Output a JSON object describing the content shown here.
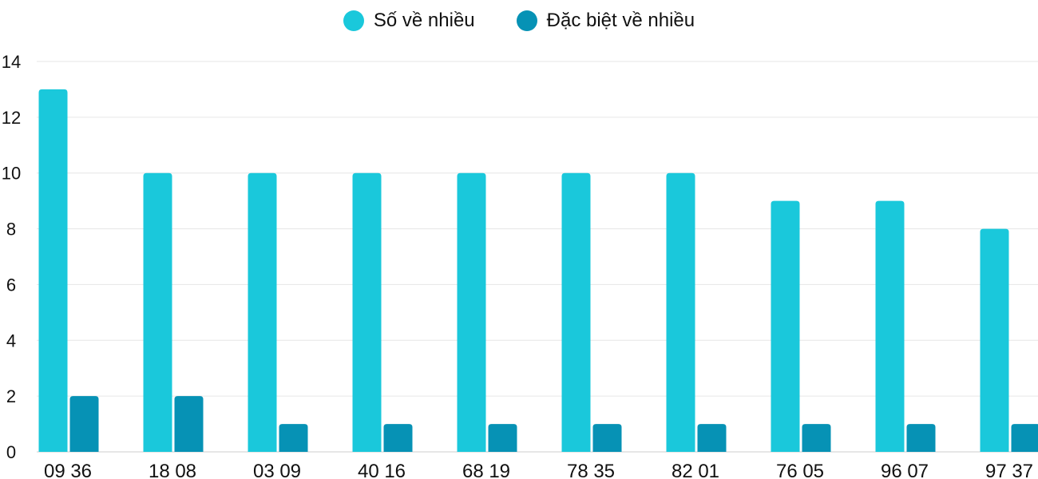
{
  "chart_data": {
    "type": "bar",
    "title": "",
    "xlabel": "",
    "ylabel": "",
    "categories": [
      "09 36",
      "18 08",
      "03 09",
      "40 16",
      "68 19",
      "78 35",
      "82 01",
      "76 05",
      "96 07",
      "97 37"
    ],
    "series": [
      {
        "name": "Số về nhiều",
        "color": "#1AC8DB",
        "values": [
          13,
          10,
          10,
          10,
          10,
          10,
          10,
          9,
          9,
          8
        ]
      },
      {
        "name": "Đặc biệt về nhiều",
        "color": "#0692B5",
        "values": [
          2,
          2,
          1,
          1,
          1,
          1,
          1,
          1,
          1,
          1
        ]
      }
    ],
    "ylim": [
      0,
      14
    ],
    "yticks": [
      0,
      2,
      4,
      6,
      8,
      10,
      12,
      14
    ],
    "grid": true,
    "legend_position": "top-center"
  }
}
